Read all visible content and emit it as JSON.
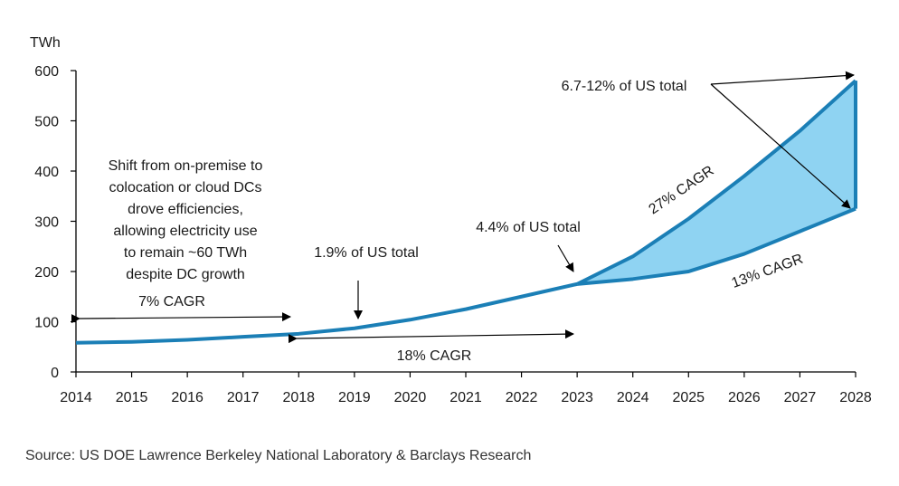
{
  "chart_data": {
    "type": "area",
    "ylabel": "TWh",
    "ylim": [
      0,
      600
    ],
    "yticks": [
      0,
      100,
      200,
      300,
      400,
      500,
      600
    ],
    "x": [
      2014,
      2015,
      2016,
      2017,
      2018,
      2019,
      2020,
      2021,
      2022,
      2023,
      2024,
      2025,
      2026,
      2027,
      2028
    ],
    "series": [
      {
        "values": [
          58,
          60,
          64,
          70,
          76,
          87,
          104,
          125,
          150,
          175,
          null,
          null,
          null,
          null,
          null
        ]
      },
      {
        "values": [
          null,
          null,
          null,
          null,
          null,
          null,
          null,
          null,
          null,
          175,
          185,
          200,
          235,
          280,
          325
        ]
      },
      {
        "values": [
          null,
          null,
          null,
          null,
          null,
          null,
          null,
          null,
          null,
          175,
          230,
          305,
          390,
          480,
          580
        ]
      }
    ],
    "fill_between": {
      "from_year": 2023,
      "to_year": 2028,
      "color": "#8fd3f2"
    },
    "line_color": "#1b7fb6",
    "annotations": {
      "note": [
        "Shift from on-premise to",
        "colocation or cloud DCs",
        "drove efficiencies,",
        "allowing electricity use",
        "to remain ~60 TWh",
        "despite DC growth"
      ],
      "cagr_7": "7% CAGR",
      "cagr_18": "18% CAGR",
      "cagr_27": "27% CAGR",
      "cagr_13": "13% CAGR",
      "us_2019": "1.9% of US total",
      "us_2023": "4.4% of US total",
      "us_2028": "6.7-12% of US total"
    }
  },
  "source": "Source: US DOE Lawrence Berkeley National Laboratory & Barclays Research"
}
